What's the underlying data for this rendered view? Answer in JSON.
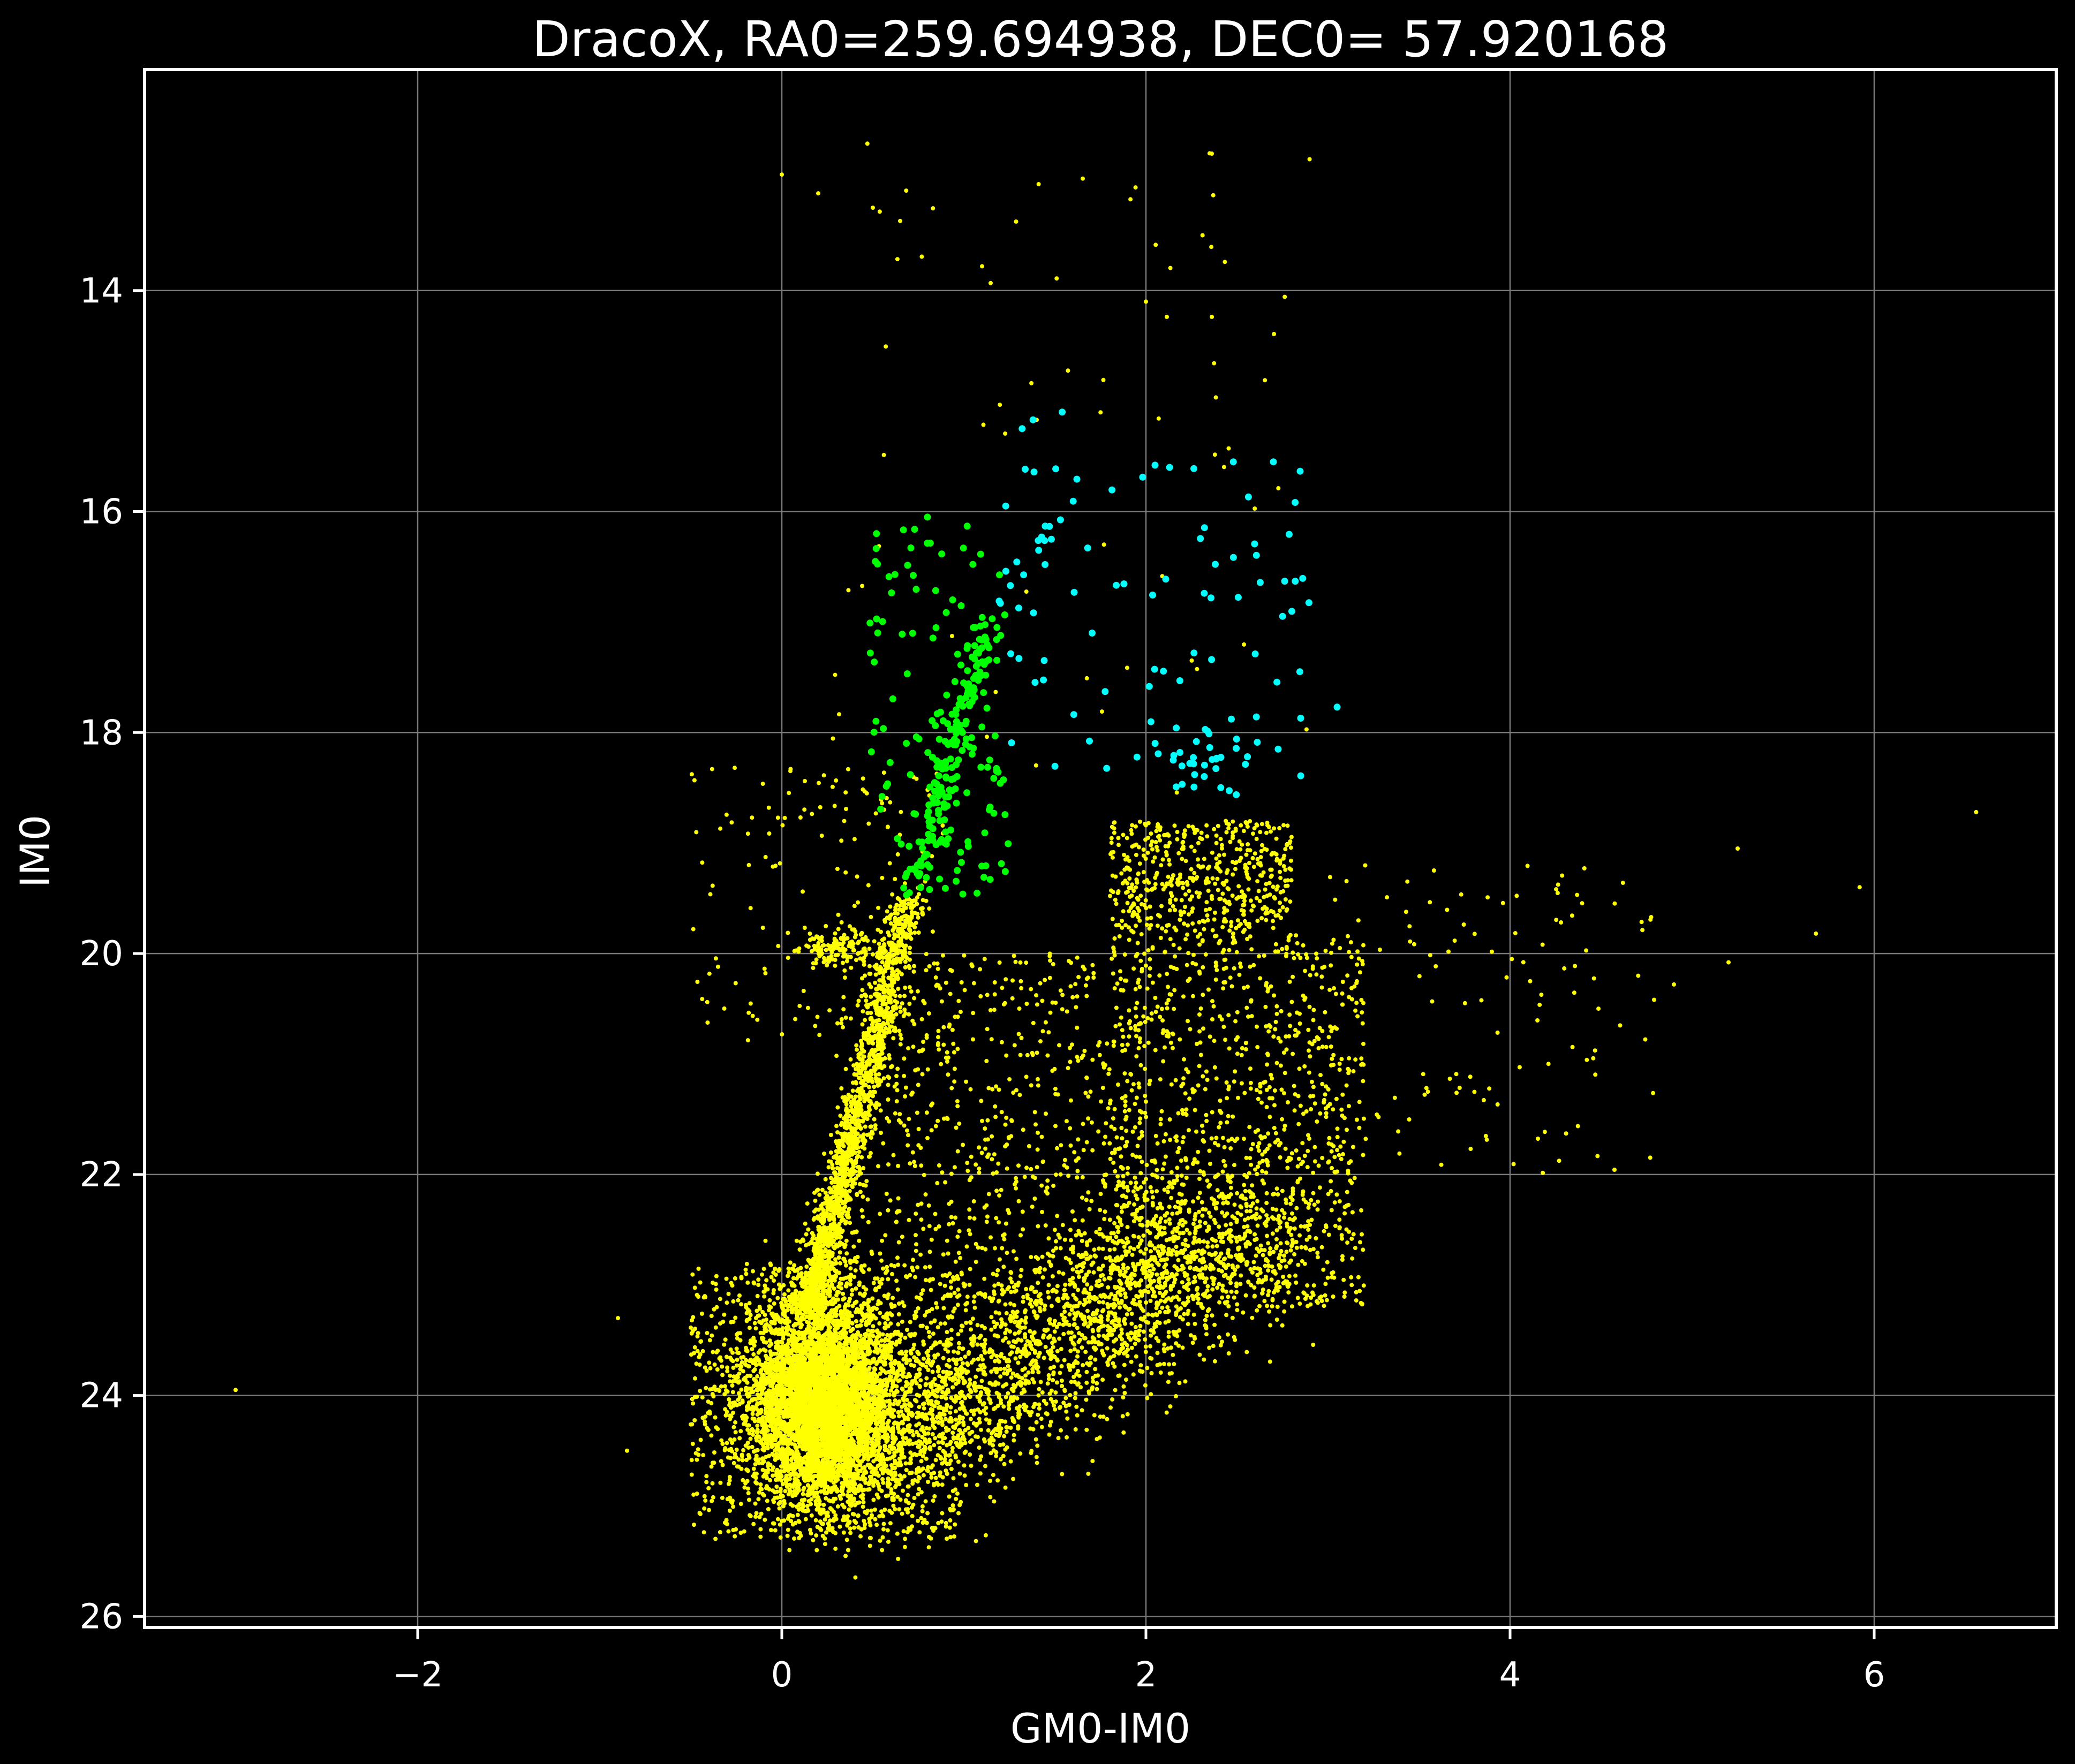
{
  "chart_data": {
    "type": "scatter",
    "title": "DracoX, RA0=259.694938, DEC0= 57.920168",
    "xlabel": "GM0-IM0",
    "ylabel": "IM0",
    "xlim": [
      -3.5,
      7.0
    ],
    "ylim": [
      26.1,
      12.0
    ],
    "y_inverted": true,
    "grid": true,
    "background": "#000000",
    "xticks": [
      -2,
      0,
      2,
      4,
      6
    ],
    "xtick_labels": [
      "−2",
      "0",
      "2",
      "4",
      "6"
    ],
    "yticks": [
      14,
      16,
      18,
      20,
      22,
      24,
      26
    ],
    "ytick_labels": [
      "14",
      "16",
      "18",
      "20",
      "22",
      "24",
      "26"
    ],
    "series": [
      {
        "color": "#ffff00",
        "marker_radius": 4,
        "components": [
          {
            "kind": "blob",
            "n": 5200,
            "cx": 0.22,
            "cy": 24.05,
            "sx": 0.2,
            "sy": 0.45,
            "xr": [
              -0.5,
              1.6
            ],
            "yr": [
              22.6,
              25.4
            ]
          },
          {
            "kind": "ridge",
            "n": 1700,
            "x0": 0.16,
            "y0": 23.2,
            "x1": 0.7,
            "y1": 19.5,
            "w": 0.05,
            "pow": 1.5
          },
          {
            "kind": "uniform",
            "n": 900,
            "x0": -0.5,
            "x1": 1.0,
            "y0": 22.8,
            "y1": 25.3
          },
          {
            "kind": "band",
            "n": 2400,
            "x0": 0.4,
            "y0": 24.6,
            "x1": 2.6,
            "y1": 22.4,
            "w": 0.6,
            "wy": 0.4
          },
          {
            "kind": "uniform",
            "n": 1000,
            "x0": 1.8,
            "x1": 3.2,
            "y0": 19.8,
            "y1": 23.2
          },
          {
            "kind": "uniform",
            "n": 500,
            "x0": 1.8,
            "x1": 2.8,
            "y0": 18.8,
            "y1": 19.8
          },
          {
            "kind": "uniform",
            "n": 800,
            "x0": 0.3,
            "x1": 2.0,
            "y0": 20.0,
            "y1": 23.5
          },
          {
            "kind": "uniform",
            "n": 150,
            "x0": -0.5,
            "x1": 0.9,
            "y0": 18.3,
            "y1": 20.8
          },
          {
            "kind": "blob",
            "n": 150,
            "cx": 0.32,
            "cy": 19.95,
            "sx": 0.12,
            "sy": 0.09,
            "xr": [
              -0.2,
              0.7
            ],
            "yr": [
              19.6,
              20.3
            ]
          },
          {
            "kind": "uniform",
            "n": 120,
            "x0": 3.0,
            "x1": 4.8,
            "y0": 19.2,
            "y1": 22.0
          },
          {
            "kind": "uniform",
            "n": 70,
            "x0": 0.2,
            "x1": 2.9,
            "y0": 12.7,
            "y1": 18.8
          }
        ],
        "points": [
          [
            -3.0,
            23.95
          ],
          [
            -0.9,
            23.3
          ],
          [
            -0.85,
            24.5
          ],
          [
            5.92,
            19.4
          ],
          [
            6.56,
            18.72
          ],
          [
            5.68,
            19.82
          ],
          [
            5.25,
            19.05
          ],
          [
            5.2,
            20.08
          ],
          [
            4.9,
            20.28
          ],
          [
            4.62,
            19.36
          ],
          [
            0.47,
            12.67
          ],
          [
            0.0,
            12.95
          ],
          [
            0.2,
            13.12
          ],
          [
            0.5,
            13.25
          ],
          [
            0.65,
            13.37
          ],
          [
            2.0,
            14.1
          ],
          [
            1.4,
            15.17
          ],
          [
            1.1,
            13.78
          ]
        ]
      },
      {
        "color": "#00ff00",
        "marker_radius": 6.5,
        "components": [
          {
            "kind": "ridge",
            "n": 170,
            "x0": 0.72,
            "y0": 19.45,
            "x1": 1.12,
            "y1": 17.0,
            "w": 0.05,
            "pow": 1.0
          },
          {
            "kind": "uniform",
            "n": 110,
            "x0": 0.48,
            "x1": 1.25,
            "y0": 16.1,
            "y1": 19.5
          }
        ],
        "points": [
          [
            0.8,
            16.05
          ],
          [
            0.52,
            16.2
          ],
          [
            1.18,
            18.35
          ],
          [
            1.14,
            18.7
          ]
        ]
      },
      {
        "color": "#00ffff",
        "marker_radius": 6.5,
        "components": [
          {
            "kind": "uniform",
            "n": 70,
            "x0": 1.25,
            "x1": 2.9,
            "y0": 15.6,
            "y1": 18.6
          },
          {
            "kind": "blob",
            "n": 25,
            "cx": 2.35,
            "cy": 18.2,
            "sx": 0.15,
            "sy": 0.15,
            "xr": [
              2.0,
              2.8
            ],
            "yr": [
              17.8,
              18.6
            ]
          },
          {
            "kind": "ridge",
            "n": 15,
            "x0": 1.2,
            "y0": 16.95,
            "x1": 1.5,
            "y1": 16.0,
            "w": 0.04,
            "pow": 1.0
          }
        ],
        "points": [
          [
            1.23,
            15.95
          ],
          [
            1.32,
            15.25
          ],
          [
            1.38,
            15.17
          ],
          [
            1.54,
            15.1
          ],
          [
            2.05,
            15.58
          ],
          [
            2.13,
            15.6
          ],
          [
            2.7,
            15.55
          ],
          [
            2.48,
            15.55
          ],
          [
            3.05,
            17.77
          ],
          [
            2.85,
            17.87
          ],
          [
            2.15,
            18.25
          ],
          [
            1.68,
            16.33
          ]
        ]
      }
    ]
  }
}
